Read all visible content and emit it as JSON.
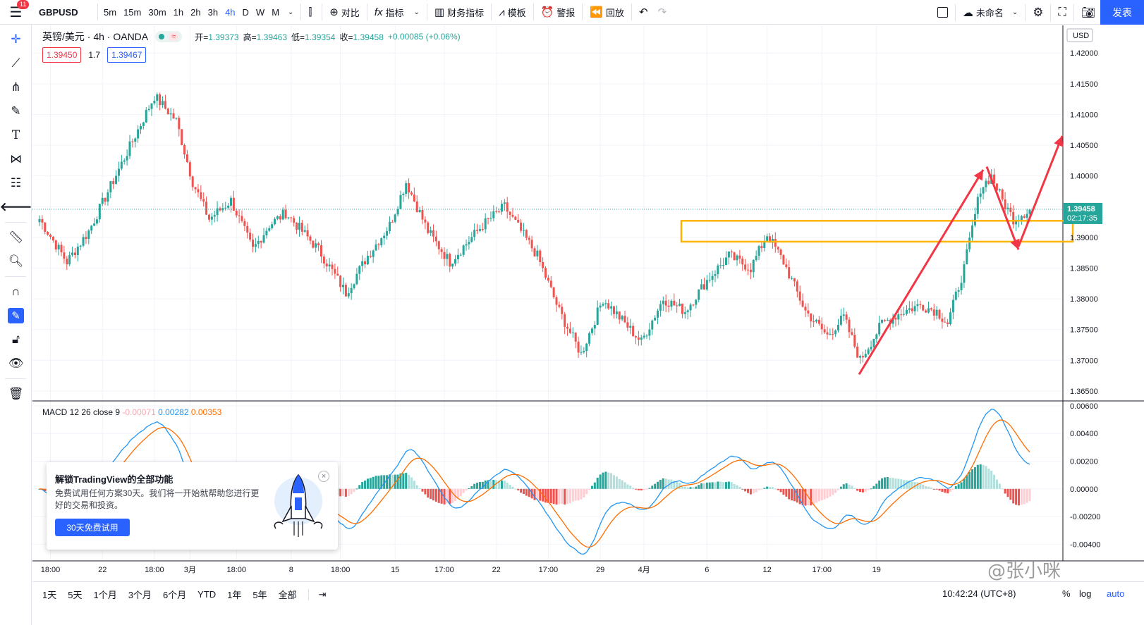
{
  "toolbar": {
    "menu_badge": "11",
    "symbol": "GBPUSD",
    "timeframes": [
      "5m",
      "15m",
      "30m",
      "1h",
      "2h",
      "3h",
      "4h",
      "D",
      "W",
      "M"
    ],
    "active_timeframe": "4h",
    "compare_label": "对比",
    "indicators_label": "指标",
    "financials_label": "财务指标",
    "templates_label": "模板",
    "alert_label": "警报",
    "replay_label": "回放",
    "layout_name": "未命名",
    "publish_label": "发表"
  },
  "legend": {
    "title": "英镑/美元 · 4h · OANDA",
    "status_wave": "≈",
    "open_label": "开",
    "open": "1.39373",
    "high_label": "高",
    "high": "1.39463",
    "low_label": "低",
    "low": "1.39354",
    "close_label": "收",
    "close": "1.39458",
    "change": "+0.00085 (+0.06%)",
    "bid": "1.39450",
    "spread": "1.7",
    "ask": "1.39467"
  },
  "macd_legend": {
    "name": "MACD 12 26 close 9",
    "hist": "-0.00071",
    "macd": "0.00282",
    "signal": "0.00353"
  },
  "price_axis": {
    "currency": "USD",
    "labels": [
      "1.42000",
      "1.41500",
      "1.41000",
      "1.40500",
      "1.40000",
      "1.39000",
      "1.38500",
      "1.38000",
      "1.37500",
      "1.37000",
      "1.36500"
    ],
    "top_label": "1.42000",
    "last_price": "1.39458",
    "countdown": "02:17:35"
  },
  "macd_axis": {
    "labels": [
      "0.00600",
      "0.00400",
      "0.00200",
      "0.00000",
      "-0.00200",
      "-0.00400"
    ]
  },
  "time_axis": {
    "labels": [
      "18:00",
      "22",
      "18:00",
      "3月",
      "18:00",
      "8",
      "18:00",
      "15",
      "17:00",
      "22",
      "17:00",
      "29",
      "4月",
      "6",
      "12",
      "17:00",
      "19"
    ]
  },
  "bottom": {
    "ranges": [
      "1天",
      "5天",
      "1个月",
      "3个月",
      "6个月",
      "YTD",
      "1年",
      "5年",
      "全部"
    ],
    "clock": "10:42:24 (UTC+8)",
    "percent": "%",
    "log": "log",
    "auto": "auto"
  },
  "promo": {
    "title": "解锁TradingView的全部功能",
    "text": "免费试用任何方案30天。我们将一开始就帮助您进行更好的交易和投资。",
    "button": "30天免费试用",
    "close": "×"
  },
  "watermark": "@张小咪",
  "chart_data": {
    "type": "candlestick",
    "symbol": "GBPUSD",
    "interval": "4h",
    "price_range": [
      1.3635,
      1.4245
    ],
    "macd_range": [
      -0.0052,
      0.0063
    ],
    "anchors": [
      {
        "i": 0,
        "p": 1.393
      },
      {
        "i": 10,
        "p": 1.386
      },
      {
        "i": 18,
        "p": 1.391
      },
      {
        "i": 30,
        "p": 1.402
      },
      {
        "i": 42,
        "p": 1.413
      },
      {
        "i": 50,
        "p": 1.409
      },
      {
        "i": 56,
        "p": 1.399
      },
      {
        "i": 62,
        "p": 1.393
      },
      {
        "i": 70,
        "p": 1.396
      },
      {
        "i": 78,
        "p": 1.388
      },
      {
        "i": 84,
        "p": 1.392
      },
      {
        "i": 90,
        "p": 1.394
      },
      {
        "i": 102,
        "p": 1.388
      },
      {
        "i": 112,
        "p": 1.381
      },
      {
        "i": 120,
        "p": 1.387
      },
      {
        "i": 128,
        "p": 1.392
      },
      {
        "i": 134,
        "p": 1.399
      },
      {
        "i": 142,
        "p": 1.391
      },
      {
        "i": 150,
        "p": 1.386
      },
      {
        "i": 162,
        "p": 1.392
      },
      {
        "i": 170,
        "p": 1.395
      },
      {
        "i": 182,
        "p": 1.387
      },
      {
        "i": 190,
        "p": 1.378
      },
      {
        "i": 198,
        "p": 1.371
      },
      {
        "i": 206,
        "p": 1.38
      },
      {
        "i": 214,
        "p": 1.376
      },
      {
        "i": 220,
        "p": 1.373
      },
      {
        "i": 228,
        "p": 1.38
      },
      {
        "i": 236,
        "p": 1.378
      },
      {
        "i": 244,
        "p": 1.383
      },
      {
        "i": 252,
        "p": 1.387
      },
      {
        "i": 260,
        "p": 1.385
      },
      {
        "i": 266,
        "p": 1.3905
      },
      {
        "i": 272,
        "p": 1.386
      },
      {
        "i": 280,
        "p": 1.378
      },
      {
        "i": 288,
        "p": 1.374
      },
      {
        "i": 294,
        "p": 1.377
      },
      {
        "i": 300,
        "p": 1.37
      },
      {
        "i": 308,
        "p": 1.376
      },
      {
        "i": 316,
        "p": 1.378
      },
      {
        "i": 322,
        "p": 1.379
      },
      {
        "i": 328,
        "p": 1.378
      },
      {
        "i": 332,
        "p": 1.376
      },
      {
        "i": 338,
        "p": 1.385
      },
      {
        "i": 344,
        "p": 1.398
      },
      {
        "i": 348,
        "p": 1.4
      },
      {
        "i": 352,
        "p": 1.396
      },
      {
        "i": 356,
        "p": 1.393
      },
      {
        "i": 362,
        "p": 1.3945
      }
    ],
    "annotations": {
      "zone_box": {
        "price_top": 1.3927,
        "price_bottom": 1.3893,
        "color": "#ffb300"
      },
      "arrows_color": "#f23645"
    },
    "colors": {
      "up": "#26a69a",
      "down": "#ef5350",
      "macd": "#2196f3",
      "signal": "#ff6d00",
      "grid": "#f0f3fa"
    }
  }
}
